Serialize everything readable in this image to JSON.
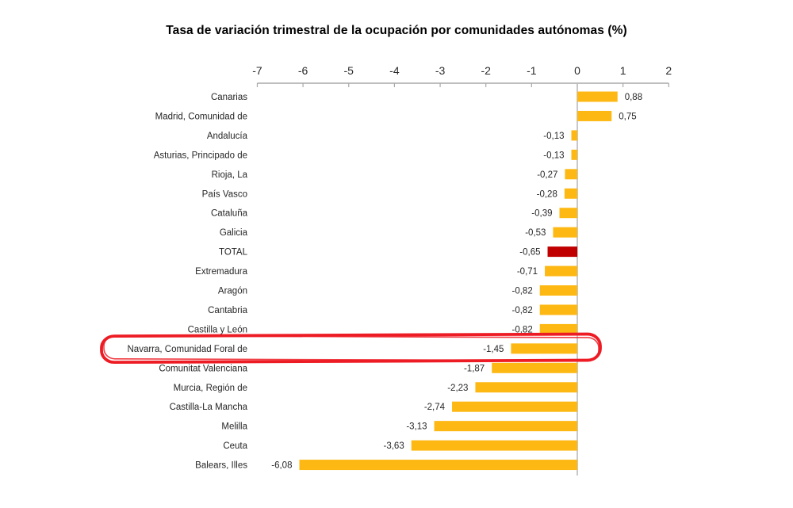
{
  "title": "Tasa de variación trimestral de la ocupación por comunidades autónomas (%)",
  "chart_data": {
    "type": "bar",
    "orientation": "horizontal",
    "title": "Tasa de variación trimestral de la ocupación por comunidades autónomas (%)",
    "xlabel": "",
    "ylabel": "",
    "xlim": [
      -7,
      2
    ],
    "x_ticks": [
      -7,
      -6,
      -5,
      -4,
      -3,
      -2,
      -1,
      0,
      1,
      2
    ],
    "grid": false,
    "legend": "none",
    "categories": [
      "Canarias",
      "Madrid, Comunidad de",
      "Andalucía",
      "Asturias, Principado de",
      "Rioja, La",
      "País Vasco",
      "Cataluña",
      "Galicia",
      "TOTAL",
      "Extremadura",
      "Aragón",
      "Cantabria",
      "Castilla y León",
      "Navarra, Comunidad Foral de",
      "Comunitat Valenciana",
      "Murcia, Región de",
      "Castilla-La Mancha",
      "Melilla",
      "Ceuta",
      "Balears, Illes"
    ],
    "values": [
      0.88,
      0.75,
      -0.13,
      -0.13,
      -0.27,
      -0.28,
      -0.39,
      -0.53,
      -0.65,
      -0.71,
      -0.82,
      -0.82,
      -0.82,
      -1.45,
      -1.87,
      -2.23,
      -2.74,
      -3.13,
      -3.63,
      -6.08
    ],
    "value_labels": [
      "0,88",
      "0,75",
      "-0,13",
      "-0,13",
      "-0,27",
      "-0,28",
      "-0,39",
      "-0,53",
      "-0,65",
      "-0,71",
      "-0,82",
      "-0,82",
      "-0,82",
      "-1,45",
      "-1,87",
      "-2,23",
      "-2,74",
      "-3,13",
      "-3,63",
      "-6,08"
    ],
    "bar_color": "#FDB813",
    "total_category": "TOTAL",
    "total_bar_color": "#C00000",
    "highlight_category": "Navarra, Comunidad Foral de",
    "highlight_annotation": "red-ellipse",
    "highlight_color": "#ED1C24",
    "axis_color": "#A8A8A8",
    "zero_line_color": "#BBBBBB",
    "text_color": "#262626"
  }
}
